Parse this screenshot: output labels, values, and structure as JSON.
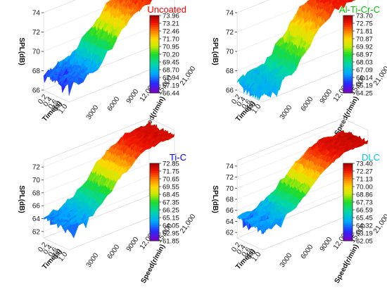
{
  "chart_data": [
    {
      "type": "surface",
      "title": "Uncoated",
      "title_color": "#ff0000",
      "zlabel": "SPL(dB)",
      "xlabel": "Time(s)",
      "ylabel": "Speed(r/min)",
      "x_ticks": [
        "0.2",
        "0.4",
        "0.6",
        "0.8",
        "1.0"
      ],
      "y_ticks": [
        "21,000",
        "15,000",
        "12,000",
        "9000",
        "6000",
        "3000"
      ],
      "z_ticks": [
        "74",
        "72",
        "70",
        "68",
        "66"
      ],
      "zlim": [
        66,
        74
      ],
      "surface": {
        "low_speed_db": 67.6,
        "high_speed_db": 73.4,
        "transition_speed": 9000,
        "min_db": 66.44,
        "max_db": 73.96
      },
      "colorbar": [
        "73.96",
        "73.21",
        "72.46",
        "71.70",
        "70.95",
        "70.20",
        "69.45",
        "68.70",
        "67.94",
        "67.19",
        "66.44"
      ]
    },
    {
      "type": "surface",
      "title": "Al-Ti-Cr-C",
      "title_color": "#00c800",
      "zlabel": "SPL(dB)",
      "xlabel": "Time(s)",
      "ylabel": "Speed(r/min)",
      "x_ticks": [
        "0.2",
        "0.4",
        "0.6",
        "0.8",
        "1.0"
      ],
      "y_ticks": [
        "21,000",
        "15,000",
        "12,000",
        "9000",
        "6000",
        "3000"
      ],
      "z_ticks": [
        "74",
        "72",
        "70",
        "68",
        "66"
      ],
      "zlim": [
        66,
        74
      ],
      "surface": {
        "low_speed_db": 66.9,
        "high_speed_db": 73.1,
        "transition_speed": 9000,
        "min_db": 64.25,
        "max_db": 73.7
      },
      "colorbar": [
        "73.70",
        "72.75",
        "71.81",
        "70.87",
        "69.92",
        "68.97",
        "68.03",
        "67.09",
        "66.14",
        "65.19",
        "64.25"
      ]
    },
    {
      "type": "surface",
      "title": "Ti-C",
      "title_color": "#0000ff",
      "zlabel": "SPL(dB)",
      "xlabel": "Time(s)",
      "ylabel": "Speed(r/min)",
      "x_ticks": [
        "0.2",
        "0.4",
        "0.6",
        "0.8",
        "1.0"
      ],
      "y_ticks": [
        "21,000",
        "15,000",
        "12,000",
        "9000",
        "6000",
        "3000"
      ],
      "z_ticks": [
        "72",
        "70",
        "68",
        "66",
        "64",
        "62"
      ],
      "zlim": [
        61,
        73
      ],
      "surface": {
        "low_speed_db": 64.2,
        "high_speed_db": 72.2,
        "transition_speed": 9000,
        "min_db": 61.85,
        "max_db": 72.85
      },
      "colorbar": [
        "72.85",
        "71.75",
        "70.65",
        "69.55",
        "68.45",
        "67.35",
        "66.25",
        "65.15",
        "64.05",
        "62.95",
        "61.85"
      ]
    },
    {
      "type": "surface",
      "title": "DLC",
      "title_color": "#00c8e6",
      "zlabel": "SPL(dB)",
      "xlabel": "Time(s)",
      "ylabel": "Speed(r/min)",
      "x_ticks": [
        "0.2",
        "0.4",
        "0.6",
        "0.8",
        "1.0"
      ],
      "y_ticks": [
        "21,000",
        "15,000",
        "12,000",
        "9000",
        "6000",
        "3000"
      ],
      "z_ticks": [
        "74",
        "72",
        "70",
        "68",
        "66",
        "64",
        "62"
      ],
      "zlim": [
        61,
        75
      ],
      "surface": {
        "low_speed_db": 64.6,
        "high_speed_db": 72.9,
        "transition_speed": 9000,
        "min_db": 62.05,
        "max_db": 73.4
      },
      "colorbar": [
        "73.40",
        "72.27",
        "71.13",
        "70.00",
        "68.86",
        "67.73",
        "66.59",
        "65.45",
        "64.32",
        "63.19",
        "62.05"
      ]
    }
  ]
}
